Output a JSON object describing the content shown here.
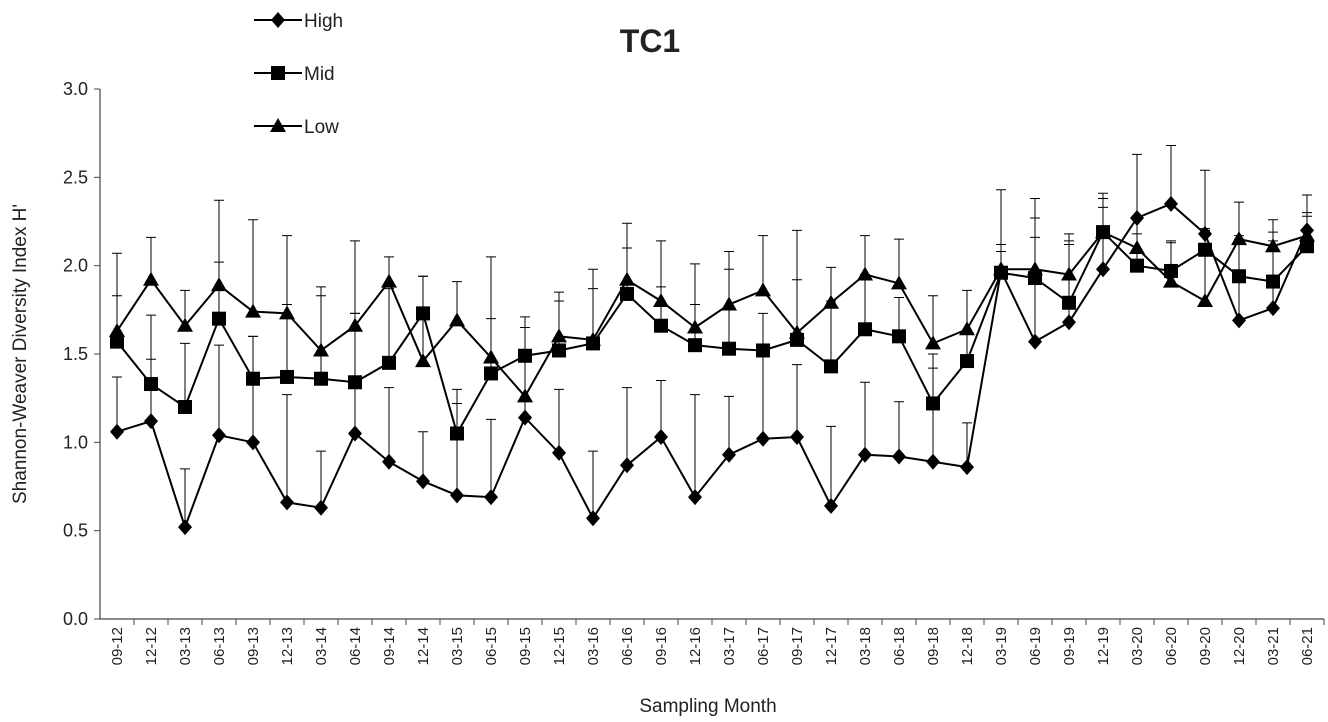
{
  "chart_data": {
    "type": "line",
    "title": "TC1",
    "x_label": "Sampling Month",
    "y_label": "Shannon-Weaver Diversity Index H'",
    "categories": [
      "09-12",
      "12-12",
      "03-13",
      "06-13",
      "09-13",
      "12-13",
      "03-14",
      "06-14",
      "09-14",
      "12-14",
      "03-15",
      "06-15",
      "09-15",
      "12-15",
      "03-16",
      "06-16",
      "09-16",
      "12-16",
      "03-17",
      "06-17",
      "09-17",
      "12-17",
      "03-18",
      "06-18",
      "09-18",
      "12-18",
      "03-19",
      "06-19",
      "09-19",
      "12-19",
      "03-20",
      "06-20",
      "09-20",
      "12-20",
      "03-21",
      "06-21"
    ],
    "ylim": [
      0,
      3
    ],
    "yticks": [
      {
        "value": 0,
        "label": "0.0"
      },
      {
        "value": 0.5,
        "label": "0.5"
      },
      {
        "value": 1,
        "label": "1.0"
      },
      {
        "value": 1.5,
        "label": "1.5"
      },
      {
        "value": 2,
        "label": "2.0"
      },
      {
        "value": 2.5,
        "label": "2.5"
      },
      {
        "value": 3,
        "label": "3.0"
      }
    ],
    "legend": "top-left",
    "series": [
      {
        "name": "High",
        "color": "#000000",
        "marker": "diamond",
        "values": [
          1.06,
          1.12,
          0.52,
          1.04,
          1.0,
          0.66,
          0.63,
          1.05,
          0.89,
          0.78,
          0.7,
          0.69,
          1.14,
          0.94,
          0.57,
          0.87,
          1.03,
          0.69,
          0.93,
          1.02,
          1.03,
          0.64,
          0.93,
          0.92,
          0.89,
          0.86,
          1.97,
          1.57,
          1.68,
          1.98,
          2.27,
          2.35,
          2.18,
          1.69,
          1.76,
          2.2
        ],
        "errors": [
          0.31,
          0.35,
          0.33,
          0.51,
          0.6,
          0.61,
          0.32,
          0.68,
          0.42,
          0.28,
          0.52,
          0.44,
          0.51,
          0.36,
          0.38,
          0.44,
          0.32,
          0.58,
          0.33,
          0.51,
          0.41,
          0.45,
          0.41,
          0.31,
          0.53,
          0.25,
          0.15,
          0.7,
          0.46,
          0.35,
          0.36,
          0.33,
          0.36,
          0.48,
          0.38,
          0.2
        ]
      },
      {
        "name": "Mid",
        "color": "#000000",
        "marker": "square",
        "values": [
          1.57,
          1.33,
          1.2,
          1.7,
          1.36,
          1.37,
          1.36,
          1.34,
          1.45,
          1.73,
          1.05,
          1.39,
          1.49,
          1.52,
          1.56,
          1.84,
          1.66,
          1.55,
          1.53,
          1.52,
          1.58,
          1.43,
          1.64,
          1.6,
          1.22,
          1.46,
          1.96,
          1.93,
          1.79,
          2.19,
          2.0,
          1.97,
          2.09,
          1.94,
          1.91,
          2.11
        ],
        "errors": [
          0.26,
          0.39,
          0.36,
          0.32,
          0.24,
          0.41,
          0.47,
          0.39,
          0.42,
          0.21,
          0.25,
          0.31,
          0.22,
          0.28,
          0.31,
          0.26,
          0.22,
          0.23,
          0.45,
          0.21,
          0.34,
          0.37,
          0.31,
          0.22,
          0.28,
          0.17,
          0.12,
          0.23,
          0.33,
          0.19,
          0.18,
          0.17,
          0.11,
          0.21,
          0.28,
          0.17
        ]
      },
      {
        "name": "Low",
        "color": "#000000",
        "marker": "triangle",
        "values": [
          1.63,
          1.92,
          1.66,
          1.89,
          1.74,
          1.73,
          1.52,
          1.66,
          1.91,
          1.46,
          1.69,
          1.48,
          1.26,
          1.6,
          1.58,
          1.92,
          1.8,
          1.65,
          1.78,
          1.86,
          1.62,
          1.79,
          1.95,
          1.9,
          1.56,
          1.64,
          1.98,
          1.98,
          1.95,
          2.19,
          2.1,
          1.91,
          1.8,
          2.15,
          2.11,
          2.17
        ],
        "errors": [
          0.44,
          0.24,
          0.2,
          0.48,
          0.52,
          0.44,
          0.36,
          0.48,
          0.14,
          0.48,
          0.22,
          0.57,
          0.39,
          0.25,
          0.4,
          0.32,
          0.34,
          0.36,
          0.3,
          0.31,
          0.58,
          0.2,
          0.22,
          0.25,
          0.27,
          0.22,
          0.45,
          0.4,
          0.23,
          0.22,
          0.16,
          0.22,
          0.41,
          0.21,
          0.15,
          0.13
        ]
      }
    ]
  }
}
